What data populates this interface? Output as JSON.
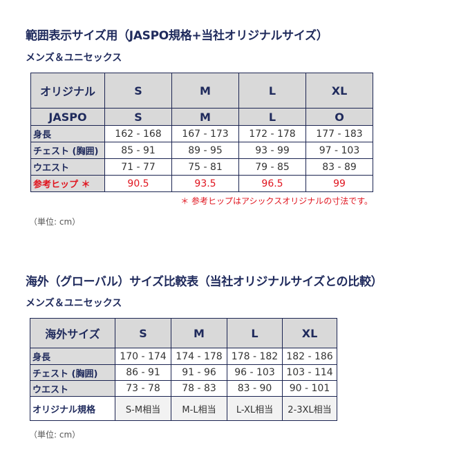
{
  "section1": {
    "title": "範囲表示サイズ用（JASPO規格+当社オリジナルサイズ）",
    "subtitle": "メンズ＆ユニセックス",
    "header_row": [
      "オリジナル",
      "S",
      "M",
      "L",
      "XL"
    ],
    "jaspo_row": [
      "JASPO",
      "S",
      "M",
      "L",
      "O"
    ],
    "rows": [
      {
        "label": "身長",
        "values": [
          "162 - 168",
          "167 - 173",
          "172 - 178",
          "177 - 183"
        ]
      },
      {
        "label": "チェスト (胸囲)",
        "values": [
          "85 - 91",
          "89 - 95",
          "93 - 99",
          "97 - 103"
        ]
      },
      {
        "label": "ウエスト",
        "values": [
          "71 - 77",
          "75 - 81",
          "79 - 85",
          "83 - 89"
        ]
      },
      {
        "label": "参考ヒップ ＊",
        "values": [
          "90.5",
          "93.5",
          "96.5",
          "99"
        ]
      }
    ],
    "footnote": "＊ 参考ヒップはアシックスオリジナルの寸法です。",
    "unit": "（単位: cm）"
  },
  "section2": {
    "title": "海外（グローバル）サイズ比較表（当社オリジナルサイズとの比較）",
    "subtitle": "メンズ＆ユニセックス",
    "header_row": [
      "海外サイズ",
      "S",
      "M",
      "L",
      "XL"
    ],
    "rows": [
      {
        "label": "身長",
        "values": [
          "170 - 174",
          "174 - 178",
          "178 - 182",
          "182 - 186"
        ]
      },
      {
        "label": "チェスト (胸囲)",
        "values": [
          "86 - 91",
          "91 - 96",
          "96 - 103",
          "103 - 114"
        ]
      },
      {
        "label": "ウエスト",
        "values": [
          "73 - 78",
          "78 - 83",
          "83 - 90",
          "90 - 101"
        ]
      },
      {
        "label": "オリジナル規格",
        "values": [
          "S-M相当",
          "M-L相当",
          "L-XL相当",
          "2-3XL相当"
        ]
      }
    ],
    "unit": "（単位: cm）"
  },
  "colors": {
    "text": "#1f2a5c",
    "border": "#1a2350",
    "header_bg": "#d9d9d9",
    "accent_red": "#e0141e"
  }
}
